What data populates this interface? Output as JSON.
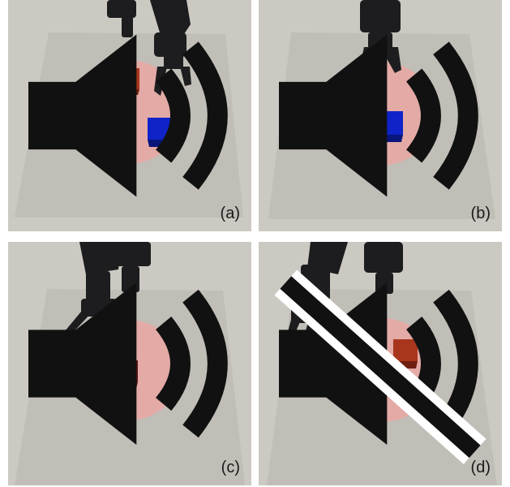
{
  "panels": [
    {
      "label": "(a)",
      "audio": "speaker-on-icon"
    },
    {
      "label": "(b)",
      "audio": "speaker-on-icon"
    },
    {
      "label": "(c)",
      "audio": "speaker-on-icon"
    },
    {
      "label": "(d)",
      "audio": "speaker-muted-icon"
    }
  ],
  "colors": {
    "floor": "#c9c7c0",
    "mat": "#bfbdb6",
    "target_zone": "#e9a7a3",
    "cube_orange": "#a8361c",
    "cube_dark_red": "#5a1413",
    "cube_blue": "#0f23c8",
    "robot": "#1d1d1f"
  }
}
